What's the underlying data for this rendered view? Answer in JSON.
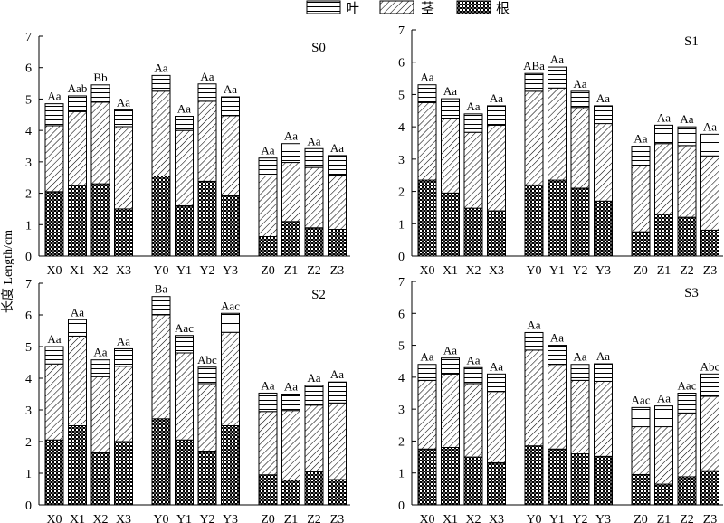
{
  "figure": {
    "ylabel": "长度 Length/cm",
    "legend": [
      {
        "name": "叶",
        "pattern": "horizontal-lines"
      },
      {
        "name": "茎",
        "pattern": "diagonal-hatch"
      },
      {
        "name": "根",
        "pattern": "dense-crosshatch"
      }
    ]
  },
  "chart_data": [
    {
      "type": "bar",
      "stacked": true,
      "title": "S0",
      "categories": [
        "X0",
        "X1",
        "X2",
        "X3",
        "Y0",
        "Y1",
        "Y2",
        "Y3",
        "Z0",
        "Z1",
        "Z2",
        "Z3"
      ],
      "series": [
        {
          "name": "根",
          "values": [
            2.05,
            2.25,
            2.3,
            1.5,
            2.55,
            1.6,
            2.38,
            1.92,
            0.62,
            1.1,
            0.9,
            0.85
          ]
        },
        {
          "name": "茎",
          "values": [
            2.1,
            2.35,
            2.6,
            2.62,
            2.7,
            2.4,
            2.55,
            2.55,
            1.93,
            1.88,
            1.92,
            1.73
          ]
        },
        {
          "name": "叶",
          "values": [
            0.7,
            0.5,
            0.55,
            0.53,
            0.5,
            0.45,
            0.55,
            0.6,
            0.57,
            0.6,
            0.6,
            0.62
          ]
        }
      ],
      "labels": [
        "Aa",
        "Aab",
        "Bb",
        "Aa",
        "Aa",
        "Aa",
        "Aa",
        "Aa",
        "Aa",
        "Aa",
        "Aa",
        "Aa"
      ],
      "ylim": [
        0,
        7
      ],
      "yticks": [
        0,
        1,
        2,
        3,
        4,
        5,
        6,
        7
      ]
    },
    {
      "type": "bar",
      "stacked": true,
      "title": "S1",
      "categories": [
        "X0",
        "X1",
        "X2",
        "X3",
        "Y0",
        "Y1",
        "Y2",
        "Y3",
        "Z0",
        "Z1",
        "Z2",
        "Z3"
      ],
      "series": [
        {
          "name": "根",
          "values": [
            2.35,
            1.95,
            1.48,
            1.4,
            2.2,
            2.35,
            2.1,
            1.7,
            0.75,
            1.3,
            1.2,
            0.8
          ]
        },
        {
          "name": "茎",
          "values": [
            2.4,
            2.32,
            2.35,
            2.65,
            2.9,
            2.85,
            2.5,
            2.4,
            2.05,
            2.18,
            2.22,
            2.3
          ]
        },
        {
          "name": "叶",
          "values": [
            0.55,
            0.6,
            0.57,
            0.6,
            0.55,
            0.65,
            0.5,
            0.55,
            0.6,
            0.57,
            0.58,
            0.67
          ]
        }
      ],
      "labels": [
        "Aa",
        "Aa",
        "Aa",
        "Aa",
        "ABa",
        "Aa",
        "Aa",
        "Aa",
        "Aa",
        "Aa",
        "Aa",
        "Aa"
      ],
      "ylim": [
        0,
        7
      ],
      "yticks": [
        0,
        1,
        2,
        3,
        4,
        5,
        6,
        7
      ]
    },
    {
      "type": "bar",
      "stacked": true,
      "title": "S2",
      "categories": [
        "X0",
        "X1",
        "X2",
        "X3",
        "Y0",
        "Y1",
        "Y2",
        "Y3",
        "Z0",
        "Z1",
        "Z2",
        "Z3"
      ],
      "series": [
        {
          "name": "根",
          "values": [
            2.05,
            2.5,
            1.65,
            2.0,
            2.72,
            2.05,
            1.7,
            2.5,
            0.95,
            0.78,
            1.05,
            0.8
          ]
        },
        {
          "name": "茎",
          "values": [
            2.4,
            2.83,
            2.4,
            2.38,
            3.28,
            2.75,
            2.13,
            2.95,
            2.0,
            2.2,
            2.1,
            2.42
          ]
        },
        {
          "name": "叶",
          "values": [
            0.55,
            0.52,
            0.53,
            0.55,
            0.58,
            0.55,
            0.52,
            0.6,
            0.58,
            0.52,
            0.62,
            0.66
          ]
        }
      ],
      "labels": [
        "Aa",
        "Aa",
        "Aa",
        "Aa",
        "Ba",
        "Aac",
        "Abc",
        "Aac",
        "Aa",
        "Aa",
        "Aa",
        "Aa"
      ],
      "ylim": [
        0,
        7
      ],
      "yticks": [
        0,
        1,
        2,
        3,
        4,
        5,
        6,
        7
      ]
    },
    {
      "type": "bar",
      "stacked": true,
      "title": "S3",
      "categories": [
        "X0",
        "X1",
        "X2",
        "X3",
        "Y0",
        "Y1",
        "Y2",
        "Y3",
        "Z0",
        "Z1",
        "Z2",
        "Z3"
      ],
      "series": [
        {
          "name": "根",
          "values": [
            1.75,
            1.8,
            1.5,
            1.32,
            1.85,
            1.75,
            1.6,
            1.52,
            0.95,
            0.65,
            0.88,
            1.07
          ]
        },
        {
          "name": "茎",
          "values": [
            2.15,
            2.3,
            2.3,
            2.23,
            3.0,
            2.65,
            2.3,
            2.35,
            1.5,
            1.8,
            2.0,
            2.33
          ]
        },
        {
          "name": "叶",
          "values": [
            0.5,
            0.5,
            0.5,
            0.55,
            0.55,
            0.6,
            0.5,
            0.55,
            0.6,
            0.65,
            0.62,
            0.7
          ]
        }
      ],
      "labels": [
        "Aa",
        "Aa",
        "Aa",
        "Aa",
        "Aa",
        "Aa",
        "Aa",
        "Aa",
        "Aac",
        "Aa",
        "Aac",
        "Abc"
      ],
      "ylim": [
        0,
        7
      ],
      "yticks": [
        0,
        1,
        2,
        3,
        4,
        5,
        6,
        7
      ]
    }
  ]
}
